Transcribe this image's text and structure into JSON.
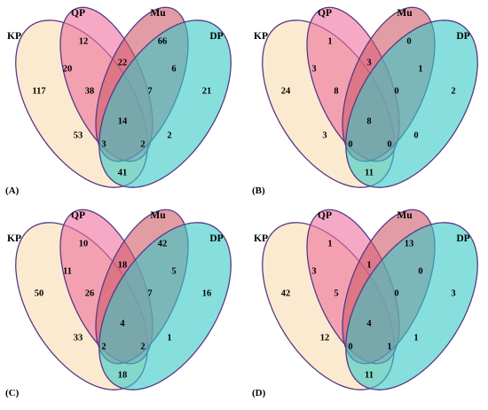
{
  "set_names": [
    "KP",
    "QP",
    "Mu",
    "DP"
  ],
  "colors": {
    "KP": "#f9dcaf",
    "QP": "#ee6f9c",
    "Mu": "#cf5a67",
    "DP": "#37cac7",
    "outline": "#553a88"
  },
  "panels": [
    {
      "tag": "(A)",
      "counts": {
        "KP": "117",
        "QP": "12",
        "Mu": "66",
        "DP": "21",
        "KP_QP": "20",
        "QP_Mu": "22",
        "Mu_DP": "6",
        "KP_DP": "41",
        "KP_QP_Mu": "38",
        "QP_Mu_DP": "7",
        "KP_Mu": "53",
        "QP_DP": "2",
        "all": "14",
        "KP_QP_DP": "3",
        "KP_Mu_DP": "2"
      }
    },
    {
      "tag": "(B)",
      "counts": {
        "KP": "24",
        "QP": "1",
        "Mu": "0",
        "DP": "2",
        "KP_QP": "3",
        "QP_Mu": "3",
        "Mu_DP": "1",
        "KP_DP": "11",
        "KP_QP_Mu": "8",
        "QP_Mu_DP": "0",
        "KP_Mu": "3",
        "QP_DP": "0",
        "all": "8",
        "KP_QP_DP": "0",
        "KP_Mu_DP": "0"
      }
    },
    {
      "tag": "(C)",
      "counts": {
        "KP": "50",
        "QP": "10",
        "Mu": "42",
        "DP": "16",
        "KP_QP": "11",
        "QP_Mu": "18",
        "Mu_DP": "5",
        "KP_DP": "18",
        "KP_QP_Mu": "26",
        "QP_Mu_DP": "7",
        "KP_Mu": "33",
        "QP_DP": "1",
        "all": "4",
        "KP_QP_DP": "2",
        "KP_Mu_DP": "2"
      }
    },
    {
      "tag": "(D)",
      "counts": {
        "KP": "42",
        "QP": "1",
        "Mu": "13",
        "DP": "3",
        "KP_QP": "3",
        "QP_Mu": "1",
        "Mu_DP": "0",
        "KP_DP": "11",
        "KP_QP_Mu": "5",
        "QP_Mu_DP": "0",
        "KP_Mu": "12",
        "QP_DP": "1",
        "all": "4",
        "KP_QP_DP": "0",
        "KP_Mu_DP": "1"
      }
    }
  ]
}
